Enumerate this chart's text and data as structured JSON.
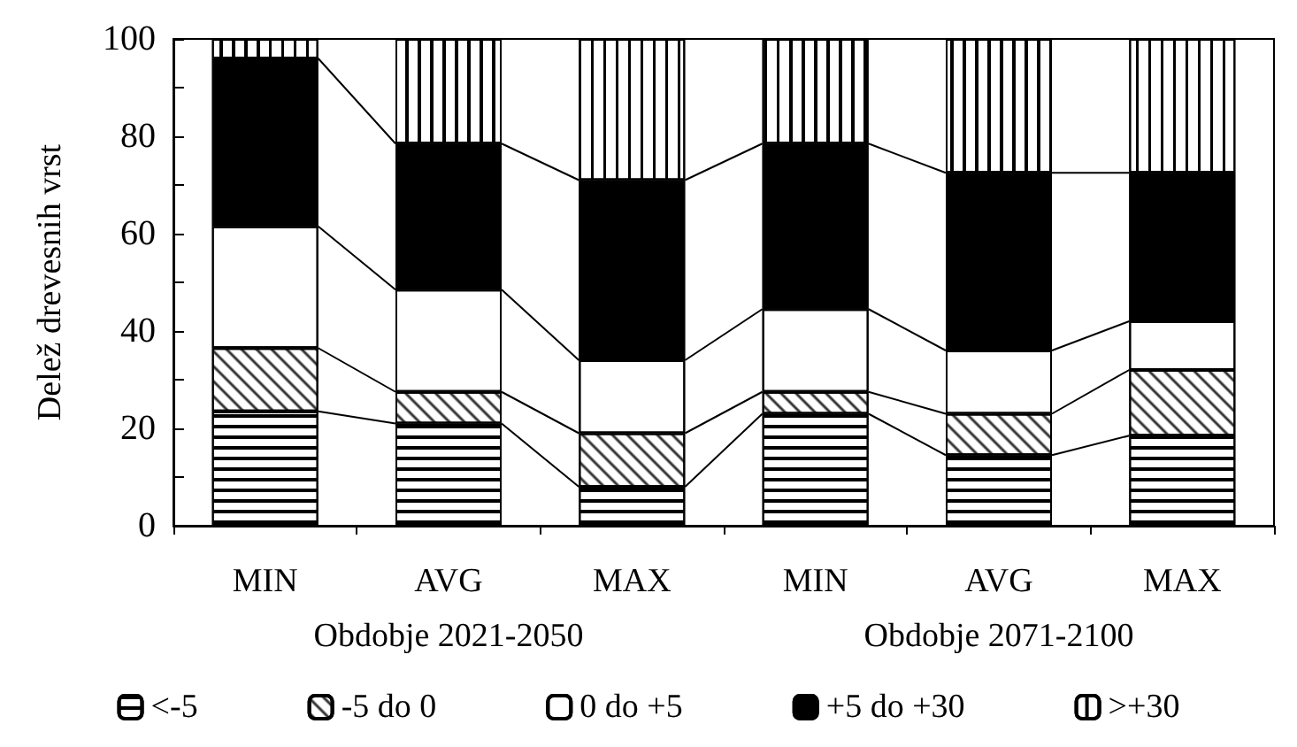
{
  "chart_data": {
    "type": "bar",
    "stacked": true,
    "ylabel": "Delež drevesnih vrst",
    "categories": [
      "MIN",
      "AVG",
      "MAX",
      "MIN",
      "AVG",
      "MAX"
    ],
    "series": [
      {
        "name": "<-5",
        "color": "#ffffff",
        "values": [
          23.5,
          21,
          8,
          23,
          14.5,
          18.5
        ]
      },
      {
        "name": "-5 do 0",
        "color": "#ffffff",
        "values": [
          13,
          6.5,
          11,
          4.5,
          8.5,
          13.5
        ]
      },
      {
        "name": "0 do +5",
        "color": "#ffffff",
        "values": [
          25,
          21,
          15,
          17,
          13,
          10
        ]
      },
      {
        "name": "+5 do +30",
        "color": "#000000",
        "values": [
          34.5,
          30,
          37,
          34,
          36.5,
          30.5
        ]
      },
      {
        "name": ">+30",
        "color": "#ffffff",
        "values": [
          4,
          21.5,
          29,
          21.5,
          27.5,
          27.5
        ]
      }
    ],
    "ylim": [
      0,
      100
    ],
    "yticks": [
      0,
      {
        "value": 10,
        "label": null
      },
      20,
      {
        "value": 30,
        "label": null
      },
      40,
      {
        "value": 50,
        "label": null
      },
      60,
      {
        "value": 70,
        "label": null
      },
      80,
      {
        "value": 90,
        "label": null
      },
      100
    ],
    "grid": false,
    "legend": "bottom",
    "annotations": [
      "Obdobje 2021-2050",
      "Obdobje 2071-2100"
    ]
  }
}
